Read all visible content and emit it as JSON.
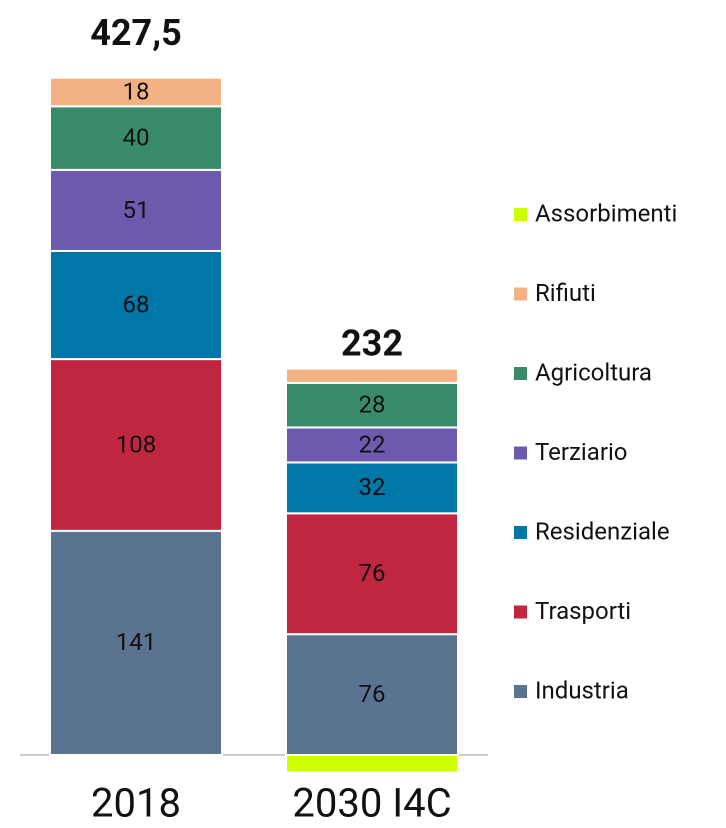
{
  "chart_data": {
    "type": "stacked_bar",
    "categories": [
      "2018",
      "2030 I4C"
    ],
    "series": [
      {
        "name": "Industria",
        "color": "#5a7391",
        "values": [
          141,
          76
        ]
      },
      {
        "name": "Trasporti",
        "color": "#c0263f",
        "values": [
          108,
          76
        ]
      },
      {
        "name": "Residenziale",
        "color": "#0077a6",
        "values": [
          68,
          32
        ]
      },
      {
        "name": "Terziario",
        "color": "#6c5aaf",
        "values": [
          51,
          22
        ]
      },
      {
        "name": "Agricoltura",
        "color": "#3a8b6b",
        "values": [
          40,
          28
        ]
      },
      {
        "name": "Rifiuti",
        "color": "#f4b183",
        "values": [
          18,
          9
        ]
      },
      {
        "name": "Assorbimenti",
        "color": "#ccff00",
        "values": [
          null,
          -11
        ]
      }
    ],
    "totals": [
      427.5,
      232
    ],
    "total_labels": [
      "427,5",
      "232"
    ],
    "legend": "right"
  }
}
